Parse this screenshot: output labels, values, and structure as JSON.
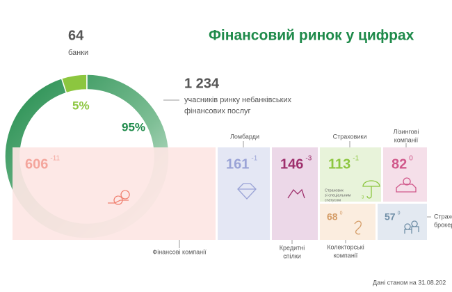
{
  "title": "Фінансовий ринок у цифрах",
  "chart_data": {
    "type": "pie",
    "values": [
      5,
      95
    ],
    "value_labels": [
      "5%",
      "95%"
    ],
    "colors": [
      "#8cc63f",
      "#1e8a4a"
    ]
  },
  "banks": {
    "count": "64",
    "label": "банки"
  },
  "nonbank": {
    "count": "1 234",
    "label": [
      "учасників ринку небанківських",
      "фінансових послуг"
    ]
  },
  "tiles": [
    {
      "label": [
        "Фінансові компанії"
      ],
      "value": 606,
      "change": -11
    },
    {
      "label": [
        "Ломбарди"
      ],
      "value": 161,
      "change": -1
    },
    {
      "label": [
        "Кредитні",
        "спілки"
      ],
      "value": 146,
      "change": -3
    },
    {
      "label": [
        "Страховики"
      ],
      "value": 113,
      "change": -1
    },
    {
      "label": [
        "Лізингові",
        "компанії"
      ],
      "value": 82,
      "change": 0
    },
    {
      "label": [
        "Колекторські",
        "компанії"
      ],
      "value": 68,
      "change": 0
    },
    {
      "label": [
        "Страхові",
        "брокери"
      ],
      "value": 57,
      "change": 0
    }
  ],
  "insurer_note": {
    "label": [
      "Страховик",
      "зі спеціальним",
      "статусом"
    ],
    "value": 3
  },
  "footnote": "Дані станом на 31.08.202"
}
